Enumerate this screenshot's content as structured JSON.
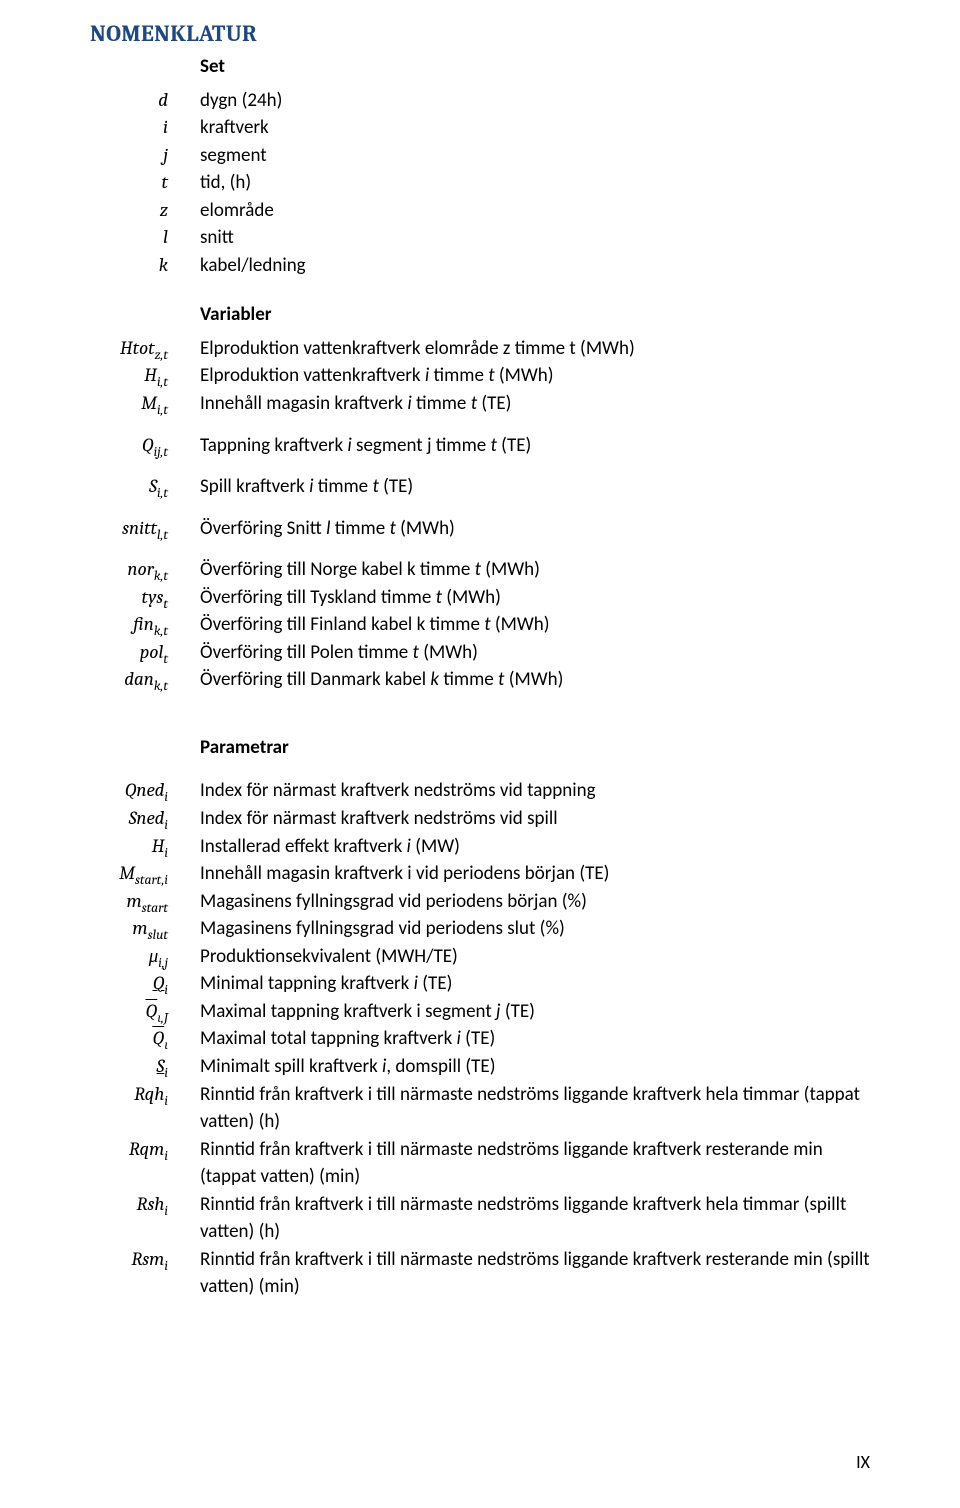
{
  "title": "NOMENKLATUR",
  "page_number": "IX",
  "colors": {
    "title": "#1f497d",
    "text": "#000000",
    "background": "#ffffff"
  },
  "typography": {
    "title_fontsize": 23,
    "body_fontsize": 19,
    "title_font": "Cambria",
    "body_font": "Calibri",
    "symbol_font": "Cambria Math"
  },
  "sections": {
    "set": {
      "heading": "Set",
      "rows": [
        {
          "sym": "d",
          "desc": "dygn (24h)"
        },
        {
          "sym": "i",
          "desc": "kraftverk"
        },
        {
          "sym": "j",
          "desc": "segment"
        },
        {
          "sym": "t",
          "desc": "tid, (h)"
        },
        {
          "sym": "z",
          "desc": "elområde"
        },
        {
          "sym": "l",
          "desc": "snitt"
        },
        {
          "sym": "k",
          "desc": "kabel/ledning"
        }
      ]
    },
    "variabler": {
      "heading": "Variabler",
      "rows": [
        {
          "sym_html": "Htot<sub>z,t</sub>",
          "desc_html": "Elproduktion vattenkraftverk elområde z timme t (MWh)"
        },
        {
          "sym_html": "H<sub>i,t</sub>",
          "desc_html": "Elproduktion vattenkraftverk <span class=\"i\">i</span> timme <span class=\"i\">t</span> (MWh)"
        },
        {
          "sym_html": "M<sub>i,t</sub>",
          "desc_html": "Innehåll magasin kraftverk <span class=\"i\">i</span> timme <span class=\"i\">t</span> (TE)"
        }
      ],
      "rows2": [
        {
          "sym_html": "Q<sub>ij,t</sub>",
          "desc_html": "Tappning kraftverk <span class=\"i\">i</span> segment j timme <span class=\"i\">t</span> (TE)"
        }
      ],
      "rows3": [
        {
          "sym_html": "S<sub>i,t</sub>",
          "desc_html": "Spill kraftverk <span class=\"i\">i</span> timme <span class=\"i\">t</span> (TE)"
        }
      ],
      "rows4": [
        {
          "sym_html": "snitt<sub>l,t</sub>",
          "desc_html": "Överföring Snitt <span class=\"i\">l</span> timme <span class=\"i\">t</span> (MWh)"
        }
      ],
      "rows5": [
        {
          "sym_html": "nor<sub>k,t</sub>",
          "desc_html": "Överföring till Norge kabel k timme <span class=\"i\">t</span> (MWh)"
        },
        {
          "sym_html": "tys<sub>t</sub>",
          "desc_html": "Överföring till Tyskland timme <span class=\"i\">t</span> (MWh)"
        },
        {
          "sym_html": "fin<sub>k,t</sub>",
          "desc_html": "Överföring till  Finland kabel  k timme <span class=\"i\">t</span> (MWh)"
        },
        {
          "sym_html": "pol<sub>t</sub>",
          "desc_html": "Överföring till Polen timme <span class=\"i\">t</span> (MWh)"
        },
        {
          "sym_html": "dan<sub>k,t</sub>",
          "desc_html": "Överföring till Danmark kabel <span class=\"i\">k</span> timme <span class=\"i\">t</span> (MWh)"
        }
      ]
    },
    "parametrar": {
      "heading": "Parametrar",
      "rows": [
        {
          "sym_html": "Qned<sub>i</sub>",
          "desc_html": "Index för närmast kraftverk nedströms vid tappning"
        },
        {
          "sym_html": "Sned<sub>i</sub>",
          "desc_html": "Index för närmast kraftverk nedströms vid spill"
        },
        {
          "sym_html": "H<sub>i</sub>",
          "desc_html": "Installerad effekt kraftverk <span class=\"i\">i</span> (MW)"
        },
        {
          "sym_html": "M<sub>start,i</sub>",
          "desc_html": "Innehåll magasin kraftverk i vid periodens början (TE)"
        },
        {
          "sym_html": "m<sub>start</sub>",
          "desc_html": "Magasinens fyllningsgrad vid periodens början (%)"
        },
        {
          "sym_html": "m<sub>slut</sub>",
          "desc_html": "Magasinens fyllningsgrad vid periodens slut (%)"
        },
        {
          "sym_html": "μ<sub>i,j</sub>",
          "desc_html": "Produktionsekvivalent (MWH/TE)"
        },
        {
          "sym_html": "<span style=\"text-decoration:underline;text-decoration-thickness:1.3px;\">Q</span><sub>i</sub>",
          "desc_html": "Minimal tappning kraftverk <span class=\"i\">i</span> (TE)"
        },
        {
          "sym_html": "<span class=\"overline\">Q</span><sub>ι,J</sub>",
          "desc_html": "Maximal tappning kraftverk i segment <span class=\"i\">j</span> (TE)"
        },
        {
          "sym_html": "<span class=\"overline\">Q</span><sub>ι</sub>",
          "desc_html": "Maximal total tappning kraftverk <span class=\"i\">i</span> (TE)"
        },
        {
          "sym_html": "<span style=\"text-decoration:underline;text-decoration-thickness:1.3px;\">S</span><sub>i</sub>",
          "desc_html": "Minimalt spill kraftverk <span class=\"i\">i</span>, domspill (TE)"
        },
        {
          "sym_html": "Rqh<sub>i</sub>",
          "desc_html": "Rinntid från kraftverk i till närmaste nedströms liggande kraftverk hela timmar (tappat vatten) (h)"
        },
        {
          "sym_html": "Rqm<sub>i</sub>",
          "desc_html": "Rinntid från kraftverk i till närmaste nedströms liggande kraftverk resterande min (tappat vatten) (min)"
        },
        {
          "sym_html": "Rsh<sub>i</sub>",
          "desc_html": "Rinntid från kraftverk i till närmaste nedströms liggande kraftverk hela timmar (spillt vatten) (h)"
        },
        {
          "sym_html": "Rsm<sub>i</sub>",
          "desc_html": "Rinntid från kraftverk i till närmaste nedströms liggande kraftverk resterande min (spillt vatten) (min)"
        }
      ]
    }
  }
}
